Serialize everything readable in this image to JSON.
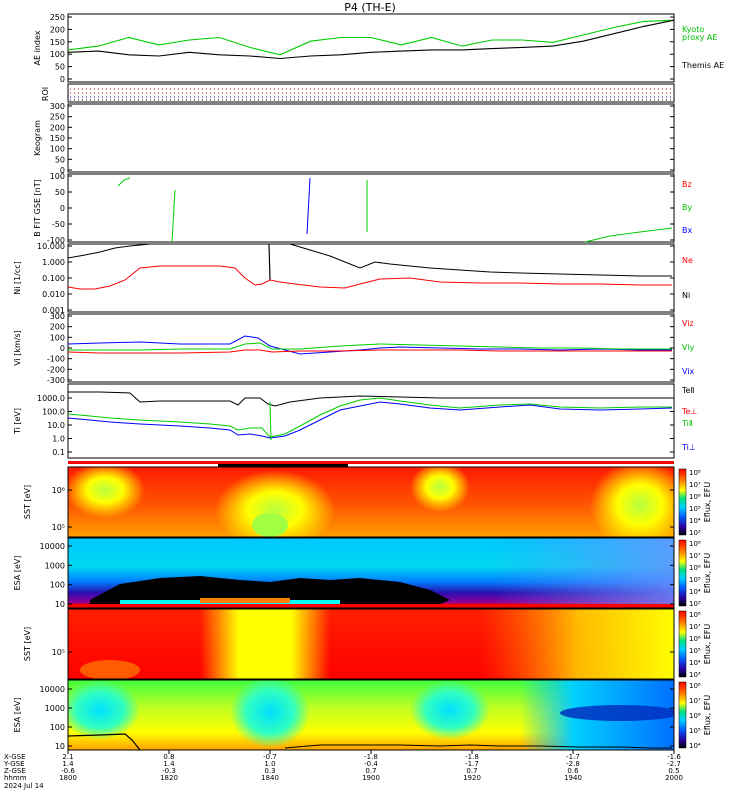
{
  "title": "P4 (TH-E)",
  "footer": {
    "row_labels": [
      "X-GSE",
      "Y-GSE",
      "Z-GSE",
      "hhmm",
      "2024 Jul 14"
    ],
    "ticks": [
      {
        "x": "2.1",
        "y": "1.4",
        "z": "-0.6",
        "t": "1800"
      },
      {
        "x": "0.8",
        "y": "1.4",
        "z": "-0.3",
        "t": "1820"
      },
      {
        "x": "-0.7",
        "y": "1.0",
        "z": "0.3",
        "t": "1840"
      },
      {
        "x": "-1.8",
        "y": "-0.4",
        "z": "0.7",
        "t": "1900"
      },
      {
        "x": "-1.8",
        "y": "-1.7",
        "z": "0.7",
        "t": "1920"
      },
      {
        "x": "-1.7",
        "y": "-2.8",
        "z": "0.6",
        "t": "1940"
      },
      {
        "x": "-1.6",
        "y": "-2.7",
        "z": "0.5",
        "t": "2000"
      }
    ]
  },
  "colors": {
    "green": "#00cc00",
    "black": "#000000",
    "red": "#ff0000",
    "blue": "#0000ff",
    "label_green": "#00c000"
  },
  "chart_data": [
    {
      "type": "line",
      "ylabel": "AE index",
      "yticks": [
        "250",
        "200",
        "150",
        "100",
        "50",
        "0"
      ],
      "ylim": [
        -20,
        255
      ],
      "x_hours": [
        18.0,
        18.1,
        18.2,
        18.3,
        18.4,
        18.5,
        18.6,
        18.7,
        18.8,
        18.9,
        19.0,
        19.1,
        19.2,
        19.3,
        19.4,
        19.5,
        19.6,
        19.7,
        19.8,
        19.9,
        20.0
      ],
      "series": [
        {
          "name": "Kyoto proxy AE",
          "color": "green",
          "values": [
            110,
            125,
            160,
            130,
            150,
            160,
            120,
            90,
            145,
            160,
            160,
            130,
            160,
            125,
            150,
            150,
            140,
            170,
            200,
            225,
            230
          ]
        },
        {
          "name": "Themis AE",
          "color": "black",
          "values": [
            100,
            105,
            90,
            85,
            100,
            90,
            85,
            75,
            85,
            90,
            100,
            105,
            110,
            110,
            115,
            120,
            125,
            145,
            175,
            205,
            230
          ]
        }
      ],
      "legend": [
        "Kyoto",
        "proxy AE",
        "Themis AE"
      ]
    },
    {
      "type": "strip",
      "ylabel": "ROI"
    },
    {
      "type": "line",
      "ylabel": "Keogram",
      "yticks": [
        "300",
        "250",
        "200",
        "150",
        "100",
        "50",
        "0"
      ]
    },
    {
      "type": "line",
      "ylabel": "B FIT GSE [nT]",
      "yticks": [
        "100",
        "50",
        "0",
        "-50",
        "-100"
      ],
      "ylim": [
        -100,
        100
      ],
      "legend": [
        "Bz",
        "By",
        "Bx"
      ]
    },
    {
      "type": "line",
      "ylabel": "Ni [1/cc]",
      "yticks": [
        "10.000",
        "1.000",
        "0.100",
        "0.010",
        "0.001"
      ],
      "scale": "log",
      "legend": [
        "Ne",
        "Ni"
      ]
    },
    {
      "type": "line",
      "ylabel": "Vi [km/s]",
      "yticks": [
        "300",
        "200",
        "100",
        "0",
        "-100",
        "-200",
        "-300"
      ],
      "ylim": [
        -300,
        300
      ],
      "legend": [
        "Viz",
        "Viy",
        "Vix"
      ]
    },
    {
      "type": "line",
      "ylabel": "Ti [eV]",
      "yticks": [
        "1000.0",
        "100.0",
        "10.0",
        "1.0",
        "0.1"
      ],
      "scale": "log",
      "legend": [
        "TeⅡ",
        "Te⊥",
        "TiⅡ",
        "Ti⊥"
      ]
    },
    {
      "type": "heatmap",
      "ylabel": "SST [eV]",
      "yticks": [
        "10⁶",
        "10⁵"
      ],
      "colorbar": [
        "10⁸",
        "10⁷",
        "10⁶",
        "10⁵",
        "10⁴",
        "10³"
      ],
      "cblabel": "Eflux, EFU"
    },
    {
      "type": "heatmap",
      "ylabel": "ESA [eV]",
      "yticks": [
        "10000",
        "1000",
        "100",
        "10"
      ],
      "colorbar": [
        "10⁸",
        "10⁷",
        "10⁶",
        "10⁵",
        "10⁴",
        "10³"
      ],
      "cblabel": "Eflux, EFU"
    },
    {
      "type": "heatmap",
      "ylabel": "SST [eV]",
      "yticks": [
        "10⁵"
      ],
      "colorbar": [
        "10⁸",
        "10⁷",
        "10⁶",
        "10⁵",
        "10⁴",
        "10³"
      ],
      "cblabel": "Eflux, EFU"
    },
    {
      "type": "heatmap",
      "ylabel": "ESA [eV]",
      "yticks": [
        "10000",
        "1000",
        "100",
        "10"
      ],
      "colorbar": [
        "10⁸",
        "10⁷",
        "10⁶",
        "10⁵",
        "10⁴"
      ],
      "cblabel": "Eflux, EFU"
    }
  ]
}
